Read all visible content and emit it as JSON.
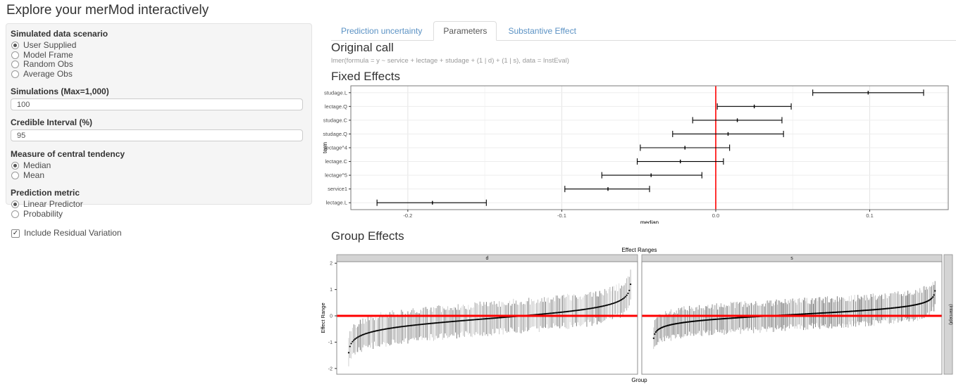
{
  "page": {
    "title": "Explore your merMod interactively"
  },
  "colors": {
    "link_blue": "#5b92c4",
    "reference_line_red": "#ff0000",
    "well_bg": "#f5f5f5",
    "strip_bg": "#d4d4d4"
  },
  "sidebar": {
    "scenario": {
      "label": "Simulated data scenario",
      "options": [
        "User Supplied",
        "Model Frame",
        "Random Obs",
        "Average Obs"
      ],
      "selected": "User Supplied"
    },
    "simulations": {
      "label": "Simulations (Max=1,000)",
      "value": "100"
    },
    "interval": {
      "label": "Credible Interval (%)",
      "value": "95"
    },
    "tendency": {
      "label": "Measure of central tendency",
      "options": [
        "Median",
        "Mean"
      ],
      "selected": "Median"
    },
    "metric": {
      "label": "Prediction metric",
      "options": [
        "Linear Predictor",
        "Probability"
      ],
      "selected": "Linear Predictor"
    },
    "residual": {
      "label": "Include Residual Variation",
      "checked": true
    }
  },
  "tabs": [
    {
      "label": "Prediction uncertainty",
      "active": false
    },
    {
      "label": "Parameters",
      "active": true
    },
    {
      "label": "Substantive Effect",
      "active": false
    }
  ],
  "main": {
    "original_call": {
      "heading": "Original call",
      "code": "lmer(formula = y ~ service + lectage + studage + (1 | d) + (1 | s), data = InstEval)"
    },
    "fixed_effects_heading": "Fixed Effects",
    "group_effects_heading": "Group Effects"
  },
  "chart_data": [
    {
      "type": "scatter",
      "style": "horizontal-errorbar",
      "title": "Fixed Effects",
      "xlabel": "median",
      "ylabel": "term",
      "xlim": [
        -0.237,
        0.151
      ],
      "xticks": [
        -0.2,
        -0.1,
        0.0,
        0.1
      ],
      "xticks_minor": [
        -0.15,
        -0.05,
        0.05,
        0.15
      ],
      "vline": {
        "x": 0.0,
        "color": "#ff0000"
      },
      "grid": true,
      "terms": [
        "studage.L",
        "lectage.Q",
        "studage.C",
        "studage.Q",
        "lectage^4",
        "lectage.C",
        "lectage^5",
        "service1",
        "lectage.L"
      ],
      "median": [
        0.099,
        0.025,
        0.014,
        0.008,
        -0.02,
        -0.023,
        -0.042,
        -0.07,
        -0.184
      ],
      "lwr": [
        0.063,
        0.001,
        -0.015,
        -0.028,
        -0.049,
        -0.051,
        -0.074,
        -0.098,
        -0.22
      ],
      "upr": [
        0.135,
        0.049,
        0.043,
        0.044,
        0.009,
        0.005,
        -0.009,
        -0.043,
        -0.149
      ],
      "bar_color": "#000000"
    },
    {
      "type": "scatter",
      "style": "caterpillar-ranef",
      "title": "Effect Ranges",
      "xlabel": "Group",
      "ylabel": "Effect Range",
      "right_strip": "(Intercept)",
      "ylim": [
        -2.2,
        2.06
      ],
      "yticks": [
        2,
        1,
        0,
        -1,
        -2
      ],
      "hline": {
        "y": 0,
        "color": "#ff0000"
      },
      "grid": false,
      "facets": [
        {
          "label": "d",
          "n": 220,
          "min": -1.4,
          "max": 1.2,
          "ci_half_width": 0.52,
          "curve": "logistic-quantile"
        },
        {
          "label": "s",
          "n": 260,
          "min": -0.85,
          "max": 0.95,
          "ci_half_width": 0.48,
          "curve": "logistic-quantile"
        }
      ],
      "bar_color": "#9a9a9a",
      "point_color": "#000000"
    }
  ]
}
